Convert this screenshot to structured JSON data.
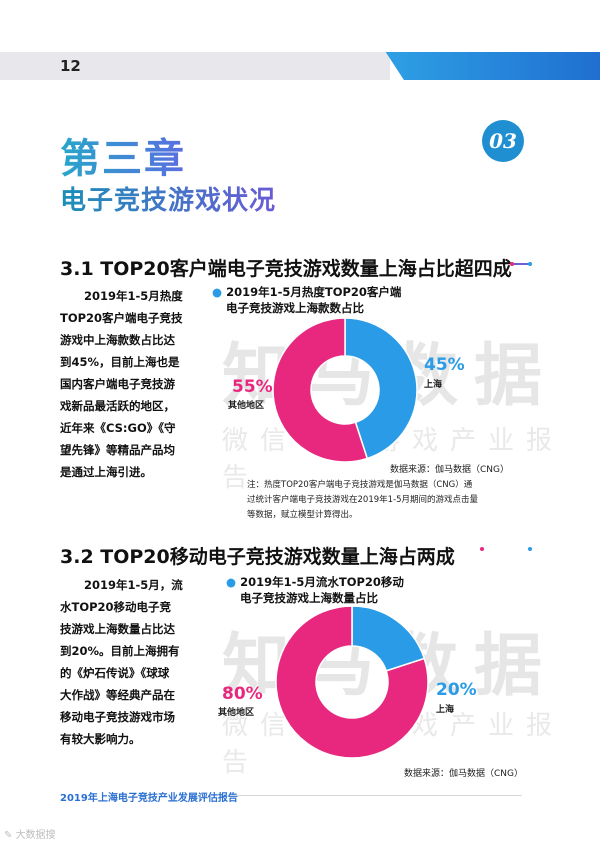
{
  "page_number": "12",
  "chapter": {
    "title": "第三章",
    "badge": "03",
    "section_title": "电子竞技游戏状况"
  },
  "watermark": {
    "big": "知马数据",
    "small": "微信号：游戏产业报告"
  },
  "section_31": {
    "title": "3.1  TOP20客户端电子竞技游戏数量上海占比超四成",
    "body_lines": [
      "2019年1-5月热度",
      "TOP20客户端电子竞技",
      "游戏中上海款数占比达",
      "到45%，目前上海也是",
      "国内客户端电子竞技游",
      "戏新品最活跃的地区，",
      "近年来《CS:GO》《守",
      "望先锋》等精品产品均",
      "是通过上海引进。"
    ],
    "chart_title_lines": [
      "2019年1-5月热度TOP20客户端",
      "电子竞技游戏上海款数占比"
    ],
    "source": "数据来源：伽马数据（CNG）",
    "note_lines": [
      "注：热度TOP20客户端电子竞技游戏是伽马数据（CNG）通",
      "过统计客户端电子竞技游戏在2019年1-5月期间的游戏点击量",
      "等数据，赋立模型计算得出。"
    ]
  },
  "section_32": {
    "title": "3.2  TOP20移动电子竞技游戏数量上海占两成",
    "body_lines": [
      "2019年1-5月，流",
      "水TOP20移动电子竞",
      "技游戏上海数量占比达",
      "到20%。目前上海拥有",
      "的《炉石传说》《球球",
      "大作战》等经典产品在",
      "移动电子竞技游戏市场",
      "有较大影响力。"
    ],
    "chart_title_lines": [
      "2019年1-5月流水TOP20移动",
      "电子竞技游戏上海数量占比"
    ],
    "source": "数据来源：伽马数据（CNG）"
  },
  "footer": "2019年上海电子竞技产业发展评估报告",
  "bottom_logo": "大数据搜",
  "colors": {
    "blue": "#2a9be6",
    "pink": "#e8287e",
    "shanghai": "#2a9be6",
    "other": "#e8287e"
  },
  "chart_data": [
    {
      "type": "pie",
      "title": "2019年1-5月热度TOP20客户端电子竞技游戏上海款数占比",
      "categories": [
        "上海",
        "其他地区"
      ],
      "values": [
        45,
        55
      ],
      "labels": [
        "45%",
        "55%"
      ]
    },
    {
      "type": "pie",
      "title": "2019年1-5月流水TOP20移动电子竞技游戏上海数量占比",
      "categories": [
        "上海",
        "其他地区"
      ],
      "values": [
        20,
        80
      ],
      "labels": [
        "20%",
        "80%"
      ]
    }
  ]
}
